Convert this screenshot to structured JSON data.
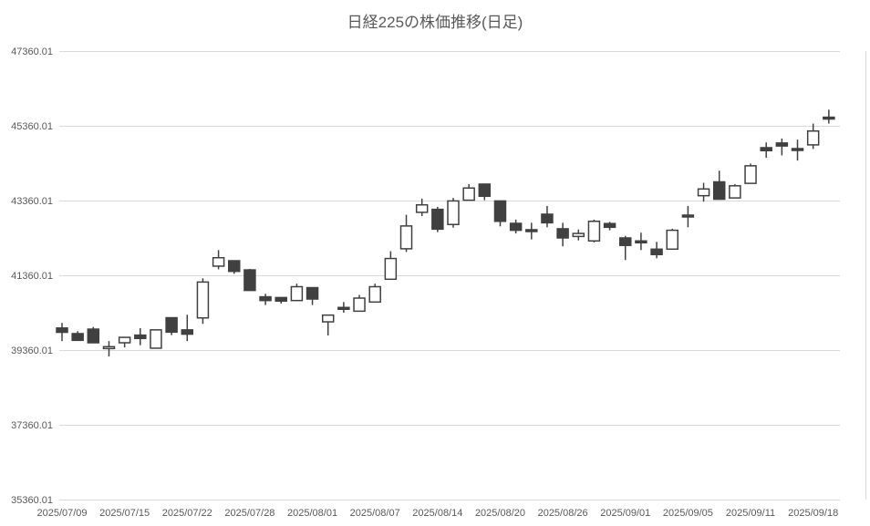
{
  "colors": {
    "up_fill": "#ffffff",
    "down_fill": "#404040",
    "outline": "#404040",
    "grid": "#d9d9d9",
    "text": "#595959",
    "background": "#ffffff"
  },
  "chart_data": {
    "type": "candlestick",
    "title": "日経225の株価推移(日足)",
    "ylabel": "",
    "xlabel": "",
    "grid": "horizontal",
    "legend": "none",
    "y_axis": {
      "min": 35360.01,
      "max": 47360.01,
      "step": 2000,
      "tick_labels": [
        "47360.01",
        "45360.01",
        "43360.01",
        "41360.01",
        "39360.01",
        "37360.01",
        "35360.01"
      ]
    },
    "x_axis": {
      "tick_labels": [
        "2025/07/09",
        "2025/07/15",
        "2025/07/22",
        "2025/07/28",
        "2025/08/01",
        "2025/08/07",
        "2025/08/14",
        "2025/08/20",
        "2025/08/26",
        "2025/09/01",
        "2025/09/05",
        "2025/09/11",
        "2025/09/18"
      ],
      "tick_candle_indices": [
        0,
        4,
        8,
        12,
        16,
        20,
        24,
        28,
        32,
        36,
        40,
        44,
        48
      ]
    },
    "candles": [
      {
        "date": "2025/07/09",
        "open": 39950,
        "high": 40085,
        "low": 39600,
        "close": 39835
      },
      {
        "date": "2025/07/10",
        "open": 39800,
        "high": 39865,
        "low": 39620,
        "close": 39620
      },
      {
        "date": "2025/07/11",
        "open": 39920,
        "high": 39980,
        "low": 39555,
        "close": 39555
      },
      {
        "date": "2025/07/14",
        "open": 39400,
        "high": 39600,
        "low": 39190,
        "close": 39450
      },
      {
        "date": "2025/07/15",
        "open": 39555,
        "high": 39700,
        "low": 39430,
        "close": 39700
      },
      {
        "date": "2025/07/16",
        "open": 39760,
        "high": 39945,
        "low": 39490,
        "close": 39670
      },
      {
        "date": "2025/07/17",
        "open": 39410,
        "high": 39900,
        "low": 39410,
        "close": 39900
      },
      {
        "date": "2025/07/18",
        "open": 40225,
        "high": 40225,
        "low": 39760,
        "close": 39840
      },
      {
        "date": "2025/07/22",
        "open": 39900,
        "high": 40305,
        "low": 39600,
        "close": 39785
      },
      {
        "date": "2025/07/23",
        "open": 40220,
        "high": 41280,
        "low": 40060,
        "close": 41180
      },
      {
        "date": "2025/07/24",
        "open": 41605,
        "high": 42035,
        "low": 41520,
        "close": 41830
      },
      {
        "date": "2025/07/25",
        "open": 41750,
        "high": 41750,
        "low": 41400,
        "close": 41465
      },
      {
        "date": "2025/07/28",
        "open": 41505,
        "high": 41530,
        "low": 40955,
        "close": 40955
      },
      {
        "date": "2025/07/29",
        "open": 40785,
        "high": 40865,
        "low": 40565,
        "close": 40685
      },
      {
        "date": "2025/07/30",
        "open": 40765,
        "high": 40765,
        "low": 40605,
        "close": 40670
      },
      {
        "date": "2025/07/31",
        "open": 40685,
        "high": 41135,
        "low": 40685,
        "close": 41055
      },
      {
        "date": "2025/08/01",
        "open": 41030,
        "high": 41030,
        "low": 40565,
        "close": 40725
      },
      {
        "date": "2025/08/04",
        "open": 40115,
        "high": 40295,
        "low": 39750,
        "close": 40295
      },
      {
        "date": "2025/08/05",
        "open": 40500,
        "high": 40645,
        "low": 40360,
        "close": 40500
      },
      {
        "date": "2025/08/06",
        "open": 40400,
        "high": 40835,
        "low": 40400,
        "close": 40750
      },
      {
        "date": "2025/08/07",
        "open": 40645,
        "high": 41135,
        "low": 40645,
        "close": 41055
      },
      {
        "date": "2025/08/08",
        "open": 41255,
        "high": 42005,
        "low": 41255,
        "close": 41810
      },
      {
        "date": "2025/08/12",
        "open": 42070,
        "high": 42980,
        "low": 41985,
        "close": 42680
      },
      {
        "date": "2025/08/13",
        "open": 43045,
        "high": 43410,
        "low": 42945,
        "close": 43245
      },
      {
        "date": "2025/08/14",
        "open": 43125,
        "high": 43190,
        "low": 42515,
        "close": 42595
      },
      {
        "date": "2025/08/15",
        "open": 42720,
        "high": 43430,
        "low": 42635,
        "close": 43350
      },
      {
        "date": "2025/08/18",
        "open": 43370,
        "high": 43800,
        "low": 43370,
        "close": 43695
      },
      {
        "date": "2025/08/19",
        "open": 43800,
        "high": 43800,
        "low": 43370,
        "close": 43475
      },
      {
        "date": "2025/08/20",
        "open": 43350,
        "high": 43350,
        "low": 42670,
        "close": 42805
      },
      {
        "date": "2025/08/21",
        "open": 42750,
        "high": 42850,
        "low": 42480,
        "close": 42565
      },
      {
        "date": "2025/08/22",
        "open": 42580,
        "high": 42765,
        "low": 42320,
        "close": 42580
      },
      {
        "date": "2025/08/25",
        "open": 42995,
        "high": 43215,
        "low": 42645,
        "close": 42765
      },
      {
        "date": "2025/08/26",
        "open": 42605,
        "high": 42765,
        "low": 42135,
        "close": 42360
      },
      {
        "date": "2025/08/27",
        "open": 42400,
        "high": 42585,
        "low": 42295,
        "close": 42480
      },
      {
        "date": "2025/08/28",
        "open": 42280,
        "high": 42850,
        "low": 42240,
        "close": 42805
      },
      {
        "date": "2025/08/29",
        "open": 42745,
        "high": 42790,
        "low": 42565,
        "close": 42645
      },
      {
        "date": "2025/09/01",
        "open": 42360,
        "high": 42415,
        "low": 41770,
        "close": 42160
      },
      {
        "date": "2025/09/02",
        "open": 42280,
        "high": 42500,
        "low": 42035,
        "close": 42280
      },
      {
        "date": "2025/09/03",
        "open": 42060,
        "high": 42255,
        "low": 41815,
        "close": 41915
      },
      {
        "date": "2025/09/04",
        "open": 42060,
        "high": 42605,
        "low": 42060,
        "close": 42565
      },
      {
        "date": "2025/09/05",
        "open": 42970,
        "high": 43215,
        "low": 42645,
        "close": 42970
      },
      {
        "date": "2025/09/08",
        "open": 43490,
        "high": 43835,
        "low": 43330,
        "close": 43670
      },
      {
        "date": "2025/09/09",
        "open": 43860,
        "high": 44160,
        "low": 43395,
        "close": 43395
      },
      {
        "date": "2025/09/10",
        "open": 43430,
        "high": 43800,
        "low": 43430,
        "close": 43755
      },
      {
        "date": "2025/09/11",
        "open": 43820,
        "high": 44350,
        "low": 43820,
        "close": 44290
      },
      {
        "date": "2025/09/12",
        "open": 44775,
        "high": 44915,
        "low": 44505,
        "close": 44695
      },
      {
        "date": "2025/09/16",
        "open": 44900,
        "high": 45020,
        "low": 44570,
        "close": 44820
      },
      {
        "date": "2025/09/17",
        "open": 44750,
        "high": 44990,
        "low": 44430,
        "close": 44750
      },
      {
        "date": "2025/09/18",
        "open": 44850,
        "high": 45420,
        "low": 44740,
        "close": 45220
      },
      {
        "date": "2025/09/19",
        "open": 45590,
        "high": 45790,
        "low": 45420,
        "close": 45590
      }
    ]
  }
}
